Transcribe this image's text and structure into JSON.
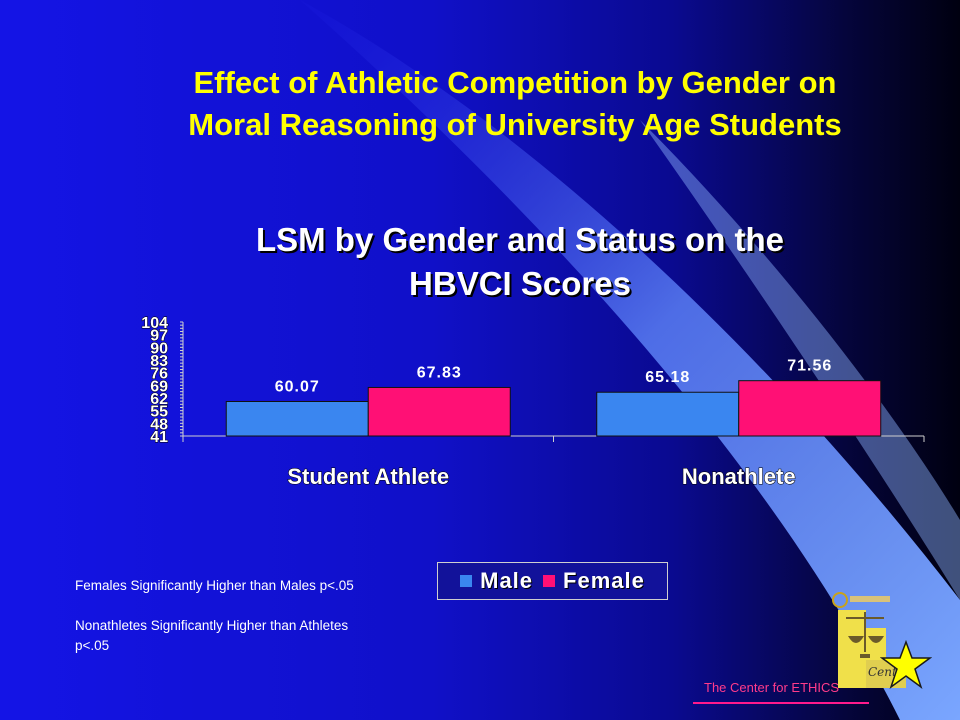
{
  "slide": {
    "title_line1": "Effect of Athletic Competition by Gender on",
    "title_line2": "Moral Reasoning of University Age Students"
  },
  "chart_data": {
    "type": "bar",
    "title_line1": "LSM by Gender and Status on the",
    "title_line2": "HBVCI Scores",
    "categories": [
      "Student Athlete",
      "Nonathlete"
    ],
    "series": [
      {
        "name": "Male",
        "values": [
          60.07,
          65.18
        ],
        "color": "#3a86f0"
      },
      {
        "name": "Female",
        "values": [
          67.83,
          71.56
        ],
        "color": "#ff1075"
      }
    ],
    "data_labels": [
      [
        "60.07",
        "67.83"
      ],
      [
        "65.18",
        "71.56"
      ]
    ],
    "yticks": [
      "41",
      "48",
      "55",
      "62",
      "69",
      "76",
      "83",
      "90",
      "97",
      "104"
    ],
    "ylim": [
      41,
      104
    ],
    "grid": false,
    "legend_position": "bottom-right"
  },
  "notes": {
    "note1": "Females Significantly Higher than Males p<.05",
    "note2": "Nonathletes Significantly Higher than Athletes p<.05"
  },
  "footer": {
    "text": "The Center for ETHICS*"
  },
  "logo": {
    "icon": "center-for-ethics-logo",
    "star_icon": "yellow-star-icon"
  }
}
